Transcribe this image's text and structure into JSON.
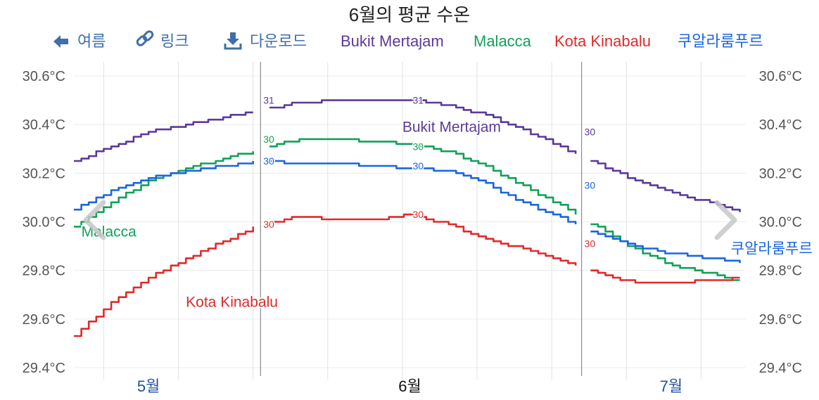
{
  "toolbar": {
    "back_label": "여름",
    "link_label": "링크",
    "download_label": "다운로드"
  },
  "chart_data": {
    "type": "line",
    "title": "6월의 평균 수온",
    "unit": "°C",
    "ylim": [
      29.4,
      30.6
    ],
    "yticks": [
      "29.4°C",
      "29.6°C",
      "29.8°C",
      "30.0°C",
      "30.2°C",
      "30.4°C",
      "30.6°C"
    ],
    "ytick_values": [
      29.4,
      29.6,
      29.8,
      30.0,
      30.2,
      30.4,
      30.6
    ],
    "x_day_range": [
      -45,
      45
    ],
    "months": [
      {
        "label": "5월",
        "day": -35,
        "current": false
      },
      {
        "label": "6월",
        "day": 0,
        "current": true
      },
      {
        "label": "7월",
        "day": 35,
        "current": false
      }
    ],
    "grid_days": [
      -41,
      -31,
      -21,
      -11,
      -1,
      9,
      19,
      29,
      39
    ],
    "divider_days": [
      -20,
      23
    ],
    "grid": true,
    "legend_position": "top",
    "series": [
      {
        "name": "Bukit Mertajam",
        "color": "#5b3a99",
        "label_day": -1,
        "label_value": 30.39,
        "x": [
          -45,
          -40,
          -35,
          -30,
          -25,
          -20,
          -15,
          -10,
          -5,
          0,
          5,
          10,
          15,
          20,
          25,
          30,
          35,
          40,
          45
        ],
        "values": [
          30.25,
          30.31,
          30.37,
          30.4,
          30.43,
          30.46,
          30.49,
          30.5,
          30.5,
          30.5,
          30.48,
          30.44,
          30.38,
          30.31,
          30.24,
          30.17,
          30.12,
          30.08,
          30.03
        ],
        "data_labels": [
          {
            "day": -20,
            "value": 30.5,
            "text": "31"
          },
          {
            "day": 0,
            "value": 30.5,
            "text": "31"
          },
          {
            "day": 23,
            "value": 30.37,
            "text": "30"
          }
        ]
      },
      {
        "name": "Malacca",
        "color": "#12a05a",
        "label_day": -44,
        "label_value": 29.96,
        "x": [
          -45,
          -40,
          -35,
          -30,
          -25,
          -20,
          -15,
          -10,
          -5,
          0,
          5,
          10,
          15,
          20,
          25,
          30,
          35,
          40,
          45
        ],
        "values": [
          29.98,
          30.08,
          30.17,
          30.22,
          30.26,
          30.3,
          30.34,
          30.34,
          30.33,
          30.32,
          30.29,
          30.23,
          30.15,
          30.07,
          29.98,
          29.89,
          29.82,
          29.79,
          29.75
        ],
        "data_labels": [
          {
            "day": -20,
            "value": 30.34,
            "text": "30"
          },
          {
            "day": 0,
            "value": 30.31,
            "text": "30"
          },
          {
            "day": 23,
            "value": 30.15,
            "text": "30"
          }
        ]
      },
      {
        "name": "Kota Kinabalu",
        "color": "#e02a2a",
        "label_day": -30,
        "label_value": 29.67,
        "x": [
          -45,
          -40,
          -35,
          -30,
          -25,
          -20,
          -15,
          -10,
          -5,
          0,
          5,
          10,
          15,
          20,
          25,
          30,
          35,
          40,
          45
        ],
        "values": [
          29.53,
          29.67,
          29.77,
          29.85,
          29.92,
          29.99,
          30.02,
          30.01,
          30.01,
          30.03,
          29.99,
          29.93,
          29.89,
          29.84,
          29.79,
          29.75,
          29.75,
          29.76,
          29.77
        ],
        "data_labels": [
          {
            "day": -20,
            "value": 29.99,
            "text": "30"
          },
          {
            "day": 0,
            "value": 30.03,
            "text": "30"
          },
          {
            "day": 23,
            "value": 29.91,
            "text": "30"
          }
        ]
      },
      {
        "name": "쿠알라룸푸르",
        "color": "#1a66e0",
        "label_day": 43,
        "label_value": 29.89,
        "x": [
          -45,
          -40,
          -35,
          -30,
          -25,
          -20,
          -15,
          -10,
          -5,
          0,
          5,
          10,
          15,
          20,
          25,
          30,
          35,
          40,
          45
        ],
        "values": [
          30.05,
          30.13,
          30.18,
          30.21,
          30.23,
          30.25,
          30.24,
          30.24,
          30.23,
          30.22,
          30.21,
          30.16,
          30.08,
          30.02,
          29.95,
          29.9,
          29.87,
          29.85,
          29.83
        ],
        "data_labels": [
          {
            "day": -20,
            "value": 30.25,
            "text": "30"
          },
          {
            "day": 0,
            "value": 30.23,
            "text": "30"
          },
          {
            "day": 23,
            "value": 30.15,
            "text": "30"
          }
        ]
      }
    ]
  }
}
